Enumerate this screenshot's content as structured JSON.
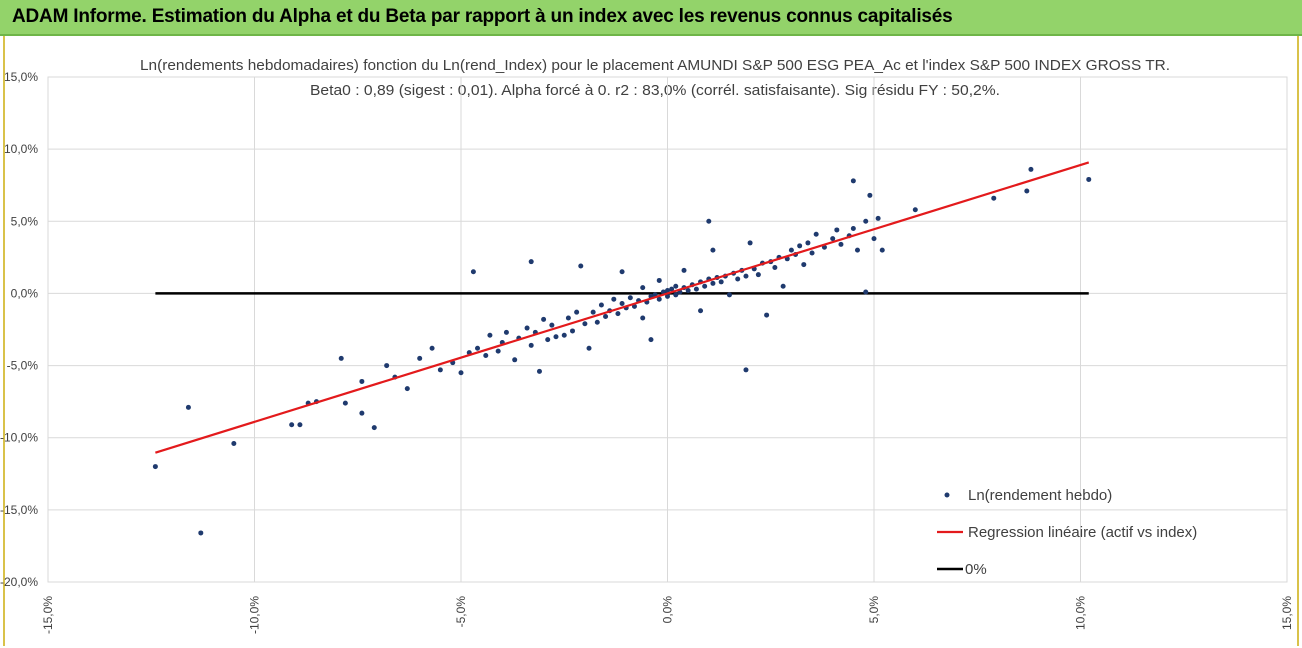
{
  "header": {
    "title": "ADAM Informe. Estimation du Alpha et du Beta par rapport à un index avec les revenus connus capitalisés"
  },
  "colors": {
    "banner": "#93d36a",
    "points": "#1f3a6e",
    "regression": "#e31a1c",
    "zero_line": "#000000",
    "grid": "#d9d9d9"
  },
  "chart_data": {
    "type": "scatter",
    "title": "Ln(rendements hebdomadaires) fonction du Ln(rend_Index) pour le placement AMUNDI S&P 500 ESG PEA_Ac et l'index S&P 500 INDEX GROSS TR.",
    "subtitle": "Beta0 : 0,89 (sigest : 0,01). Alpha forcé à 0. r2 : 83,0% (corrél. satisfaisante). Sig résidu FY : 50,2%.",
    "xlabel": "",
    "ylabel": "",
    "xlim": [
      -0.15,
      0.15
    ],
    "ylim": [
      -0.2,
      0.15
    ],
    "x_ticks": [
      -0.15,
      -0.1,
      -0.05,
      0.0,
      0.05,
      0.1,
      0.15
    ],
    "x_tick_labels": [
      "-15,0%",
      "-10,0%",
      "-5,0%",
      "0,0%",
      "5,0%",
      "10,0%",
      "15,0%"
    ],
    "y_ticks": [
      -0.2,
      -0.15,
      -0.1,
      -0.05,
      0.0,
      0.05,
      0.1,
      0.15
    ],
    "y_tick_labels": [
      "-20,0%",
      "-15,0%",
      "-10,0%",
      "-5,0%",
      "0,0%",
      "5,0%",
      "10,0%",
      "15,0%"
    ],
    "grid": true,
    "legend_position": "bottom-right",
    "series": [
      {
        "name": "Ln(rendement hebdo)",
        "kind": "scatter",
        "points": [
          [
            -0.124,
            -0.12
          ],
          [
            -0.116,
            -0.079
          ],
          [
            -0.113,
            -0.166
          ],
          [
            -0.105,
            -0.104
          ],
          [
            -0.091,
            -0.091
          ],
          [
            -0.089,
            -0.091
          ],
          [
            -0.087,
            -0.076
          ],
          [
            -0.085,
            -0.075
          ],
          [
            -0.079,
            -0.045
          ],
          [
            -0.078,
            -0.076
          ],
          [
            -0.074,
            -0.083
          ],
          [
            -0.074,
            -0.061
          ],
          [
            -0.071,
            -0.093
          ],
          [
            -0.068,
            -0.05
          ],
          [
            -0.066,
            -0.058
          ],
          [
            -0.063,
            -0.066
          ],
          [
            -0.06,
            -0.045
          ],
          [
            -0.057,
            -0.038
          ],
          [
            -0.055,
            -0.053
          ],
          [
            -0.052,
            -0.048
          ],
          [
            -0.05,
            -0.055
          ],
          [
            -0.048,
            -0.041
          ],
          [
            -0.047,
            0.015
          ],
          [
            -0.046,
            -0.038
          ],
          [
            -0.044,
            -0.043
          ],
          [
            -0.043,
            -0.029
          ],
          [
            -0.041,
            -0.04
          ],
          [
            -0.04,
            -0.034
          ],
          [
            -0.039,
            -0.027
          ],
          [
            -0.037,
            -0.046
          ],
          [
            -0.036,
            -0.031
          ],
          [
            -0.034,
            -0.024
          ],
          [
            -0.033,
            -0.036
          ],
          [
            -0.033,
            0.022
          ],
          [
            -0.032,
            -0.027
          ],
          [
            -0.031,
            -0.054
          ],
          [
            -0.03,
            -0.018
          ],
          [
            -0.029,
            -0.032
          ],
          [
            -0.028,
            -0.022
          ],
          [
            -0.027,
            -0.03
          ],
          [
            -0.025,
            -0.029
          ],
          [
            -0.024,
            -0.017
          ],
          [
            -0.023,
            -0.026
          ],
          [
            -0.022,
            -0.013
          ],
          [
            -0.021,
            0.019
          ],
          [
            -0.02,
            -0.021
          ],
          [
            -0.019,
            -0.038
          ],
          [
            -0.018,
            -0.013
          ],
          [
            -0.017,
            -0.02
          ],
          [
            -0.016,
            -0.008
          ],
          [
            -0.015,
            -0.016
          ],
          [
            -0.014,
            -0.012
          ],
          [
            -0.013,
            -0.004
          ],
          [
            -0.012,
            -0.014
          ],
          [
            -0.011,
            -0.007
          ],
          [
            -0.011,
            0.015
          ],
          [
            -0.01,
            -0.01
          ],
          [
            -0.009,
            -0.003
          ],
          [
            -0.008,
            -0.009
          ],
          [
            -0.007,
            -0.005
          ],
          [
            -0.006,
            -0.017
          ],
          [
            -0.006,
            0.004
          ],
          [
            -0.005,
            -0.006
          ],
          [
            -0.004,
            -0.002
          ],
          [
            -0.004,
            -0.032
          ],
          [
            -0.003,
            -0.001
          ],
          [
            -0.002,
            -0.004
          ],
          [
            -0.002,
            0.009
          ],
          [
            -0.001,
            0.001
          ],
          [
            0.0,
            -0.002
          ],
          [
            0.0,
            0.002
          ],
          [
            0.001,
            0.003
          ],
          [
            0.002,
            -0.001
          ],
          [
            0.002,
            0.005
          ],
          [
            0.003,
            0.001
          ],
          [
            0.004,
            0.004
          ],
          [
            0.004,
            0.016
          ],
          [
            0.005,
            0.002
          ],
          [
            0.006,
            0.006
          ],
          [
            0.007,
            0.003
          ],
          [
            0.008,
            -0.012
          ],
          [
            0.008,
            0.008
          ],
          [
            0.009,
            0.005
          ],
          [
            0.01,
            0.01
          ],
          [
            0.011,
            0.007
          ],
          [
            0.011,
            0.03
          ],
          [
            0.012,
            0.011
          ],
          [
            0.013,
            0.008
          ],
          [
            0.014,
            0.012
          ],
          [
            0.015,
            -0.001
          ],
          [
            0.016,
            0.014
          ],
          [
            0.017,
            0.01
          ],
          [
            0.018,
            0.016
          ],
          [
            0.019,
            0.012
          ],
          [
            0.02,
            0.035
          ],
          [
            0.021,
            0.017
          ],
          [
            0.022,
            0.013
          ],
          [
            0.023,
            0.021
          ],
          [
            0.024,
            -0.015
          ],
          [
            0.025,
            0.022
          ],
          [
            0.026,
            0.018
          ],
          [
            0.027,
            0.025
          ],
          [
            0.028,
            0.005
          ],
          [
            0.029,
            0.024
          ],
          [
            0.03,
            0.03
          ],
          [
            0.031,
            0.027
          ],
          [
            0.032,
            0.033
          ],
          [
            0.033,
            0.02
          ],
          [
            0.034,
            0.035
          ],
          [
            0.035,
            0.028
          ],
          [
            0.036,
            0.041
          ],
          [
            0.038,
            0.032
          ],
          [
            0.04,
            0.038
          ],
          [
            0.041,
            0.044
          ],
          [
            0.042,
            0.034
          ],
          [
            0.044,
            0.04
          ],
          [
            0.045,
            0.045
          ],
          [
            0.046,
            0.03
          ],
          [
            0.048,
            0.05
          ],
          [
            0.05,
            0.038
          ],
          [
            0.051,
            0.052
          ],
          [
            0.052,
            0.03
          ],
          [
            0.045,
            0.078
          ],
          [
            0.049,
            0.068
          ],
          [
            0.048,
            0.001
          ],
          [
            0.06,
            0.058
          ],
          [
            0.079,
            0.066
          ],
          [
            0.087,
            0.071
          ],
          [
            0.088,
            0.086
          ],
          [
            0.102,
            0.079
          ],
          [
            0.019,
            -0.053
          ],
          [
            0.01,
            0.05
          ]
        ]
      },
      {
        "name": "Regression linéaire (actif vs index)",
        "kind": "line",
        "beta": 0.89,
        "x": [
          -0.124,
          0.102
        ]
      },
      {
        "name": "0%",
        "kind": "line",
        "value": 0.0,
        "x": [
          -0.124,
          0.102
        ]
      }
    ]
  }
}
